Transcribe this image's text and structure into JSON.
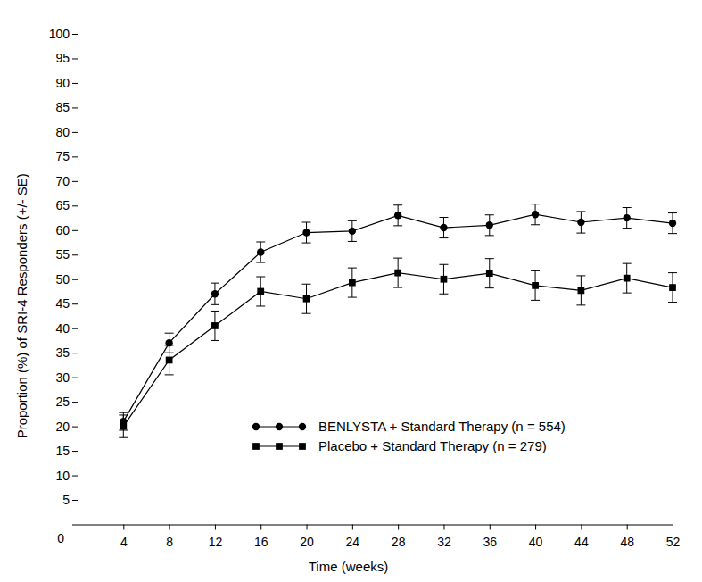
{
  "chart_data": {
    "type": "line",
    "x_label": "Time (weeks)",
    "y_label": "Proportion (%) of SRI-4 Responders (+/- SE)",
    "x": [
      4,
      8,
      12,
      16,
      20,
      24,
      28,
      32,
      36,
      40,
      44,
      48,
      52
    ],
    "xlim": [
      0,
      52
    ],
    "xticks": [
      4,
      8,
      12,
      16,
      20,
      24,
      28,
      32,
      36,
      40,
      44,
      48,
      52
    ],
    "ylim": [
      0,
      100
    ],
    "yticks": [
      0,
      5,
      10,
      15,
      20,
      25,
      30,
      35,
      40,
      45,
      50,
      55,
      60,
      65,
      70,
      75,
      80,
      85,
      90,
      95,
      100
    ],
    "grid": false,
    "legend": "lower right",
    "series": [
      {
        "name": "BENLYSTA + Standard Therapy (n = 554)",
        "color": "#000000",
        "marker": "circle",
        "line_style": "solid",
        "values": [
          21,
          37,
          47,
          55.5,
          59.5,
          59.8,
          63,
          60.5,
          61,
          63.2,
          61.6,
          62.5,
          61.4
        ],
        "errors": [
          1.8,
          2.0,
          2.2,
          2.1,
          2.1,
          2.1,
          2.1,
          2.1,
          2.1,
          2.1,
          2.2,
          2.1,
          2.1
        ]
      },
      {
        "name": "Placebo + Standard Therapy (n = 279)",
        "color": "#000000",
        "marker": "square",
        "line_style": "solid",
        "values": [
          20,
          33.5,
          40.5,
          47.5,
          46,
          49.3,
          51.3,
          50,
          51.2,
          48.7,
          47.7,
          50.2,
          48.3
        ],
        "errors": [
          2.3,
          3.0,
          3.0,
          3.0,
          3.0,
          3.0,
          3.0,
          3.0,
          3.0,
          3.0,
          3.0,
          3.0,
          3.0
        ]
      }
    ]
  }
}
